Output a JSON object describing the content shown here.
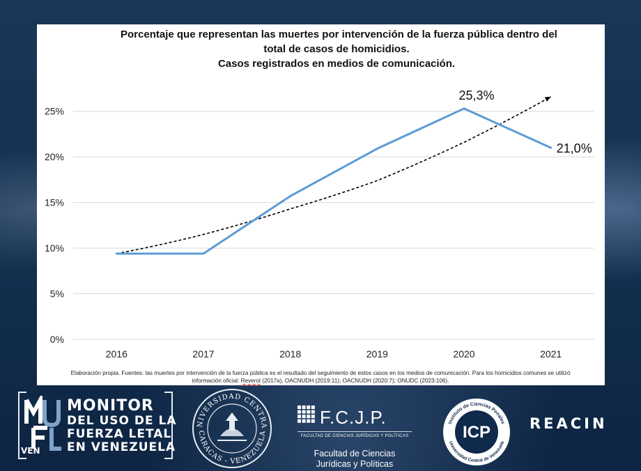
{
  "chart_data": {
    "type": "line",
    "title_lines": [
      "Porcentaje que representan las muertes por intervención de la fuerza pública dentro del",
      "total de casos de homicidios.",
      "Casos registrados en medios de comunicación."
    ],
    "categories": [
      "2016",
      "2017",
      "2018",
      "2019",
      "2020",
      "2021"
    ],
    "series": [
      {
        "values": [
          9.4,
          9.4,
          15.7,
          20.9,
          25.3,
          21.0
        ],
        "color": "#5b9bd5"
      }
    ],
    "trendline": {
      "style": "dashed",
      "color": "#000000",
      "values": [
        9.4,
        11.5,
        14.3,
        17.4,
        21.6,
        26.6
      ]
    },
    "data_labels": [
      {
        "category": "2020",
        "value": 25.3,
        "text": "25,3%"
      },
      {
        "category": "2021",
        "value": 21.0,
        "text": "21,0%"
      }
    ],
    "yticks": [
      "0%",
      "5%",
      "10%",
      "15%",
      "20%",
      "25%"
    ],
    "ylim": [
      0,
      27.5
    ],
    "grid": true,
    "xlabel": "",
    "ylabel": ""
  },
  "source_note": {
    "line1": "Elaboración propia. Fuentes: las muertes por intervención de la fuerza pública es el resultado del seguimiento de estos casos en los medios de comunicación. Para los homicidios comunes se utilizó",
    "line2_prefix": "información oficial: ",
    "line2_underlined": "Reverol",
    "line2_rest": " (2017a), OACNUDH (2019:11); OACNUDH (2020:7); ONUDC (2023:106)."
  },
  "logos": {
    "monitor": {
      "line1": "MONITOR",
      "line2": "DEL USO DE LA",
      "line3": "FUERZA LETAL",
      "line4": "EN VENEZUELA",
      "ven": "VEN"
    },
    "ucv_seal": {
      "top_text": "UNIVERSIDAD CENTRAL",
      "bottom_text": "CARACAS - VENEZUELA"
    },
    "fcjp": {
      "name": "F.C.J.P.",
      "small": "FACULTAD DE CIENCIAS JURÍDICAS Y POLÍTICAS",
      "full_line1": "Facultad de Ciencias",
      "full_line2": "Jurídicas y Políticas"
    },
    "icp": {
      "ring_top": "Instituto de Ciencias Penales",
      "ring_bottom": "Universidad Central de Venezuela",
      "mark": "ICP"
    },
    "reacin": "REACIN"
  },
  "colors": {
    "panel": "#ffffff",
    "background": "#13304f",
    "line": "#5b9bd5"
  }
}
